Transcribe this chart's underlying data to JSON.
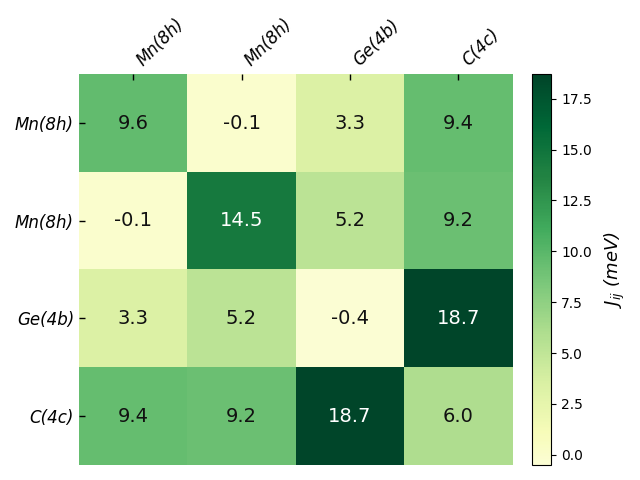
{
  "labels": [
    "Mn(8h)",
    "Mn(8h)",
    "Ge(4b)",
    "C(4c)"
  ],
  "matrix": [
    [
      9.6,
      -0.1,
      3.3,
      9.4
    ],
    [
      -0.1,
      14.5,
      5.2,
      9.2
    ],
    [
      3.3,
      5.2,
      -0.4,
      18.7
    ],
    [
      9.4,
      9.2,
      18.7,
      6.0
    ]
  ],
  "vmin": -0.5,
  "vmax": 18.7,
  "cmap_name": "YlGn",
  "colorbar_ticks": [
    0.0,
    2.5,
    5.0,
    7.5,
    10.0,
    12.5,
    15.0,
    17.5
  ],
  "colorbar_label": "$J_{ij}$ (meV)",
  "text_threshold": 8.5,
  "figsize": [
    6.4,
    4.8
  ],
  "dpi": 100,
  "bg_color": "#ffffff",
  "font_family": "DejaVu Sans",
  "tick_label_fontsize": 12,
  "annotation_fontsize": 14,
  "colorbar_label_fontsize": 13,
  "colorbar_tick_fontsize": 10
}
